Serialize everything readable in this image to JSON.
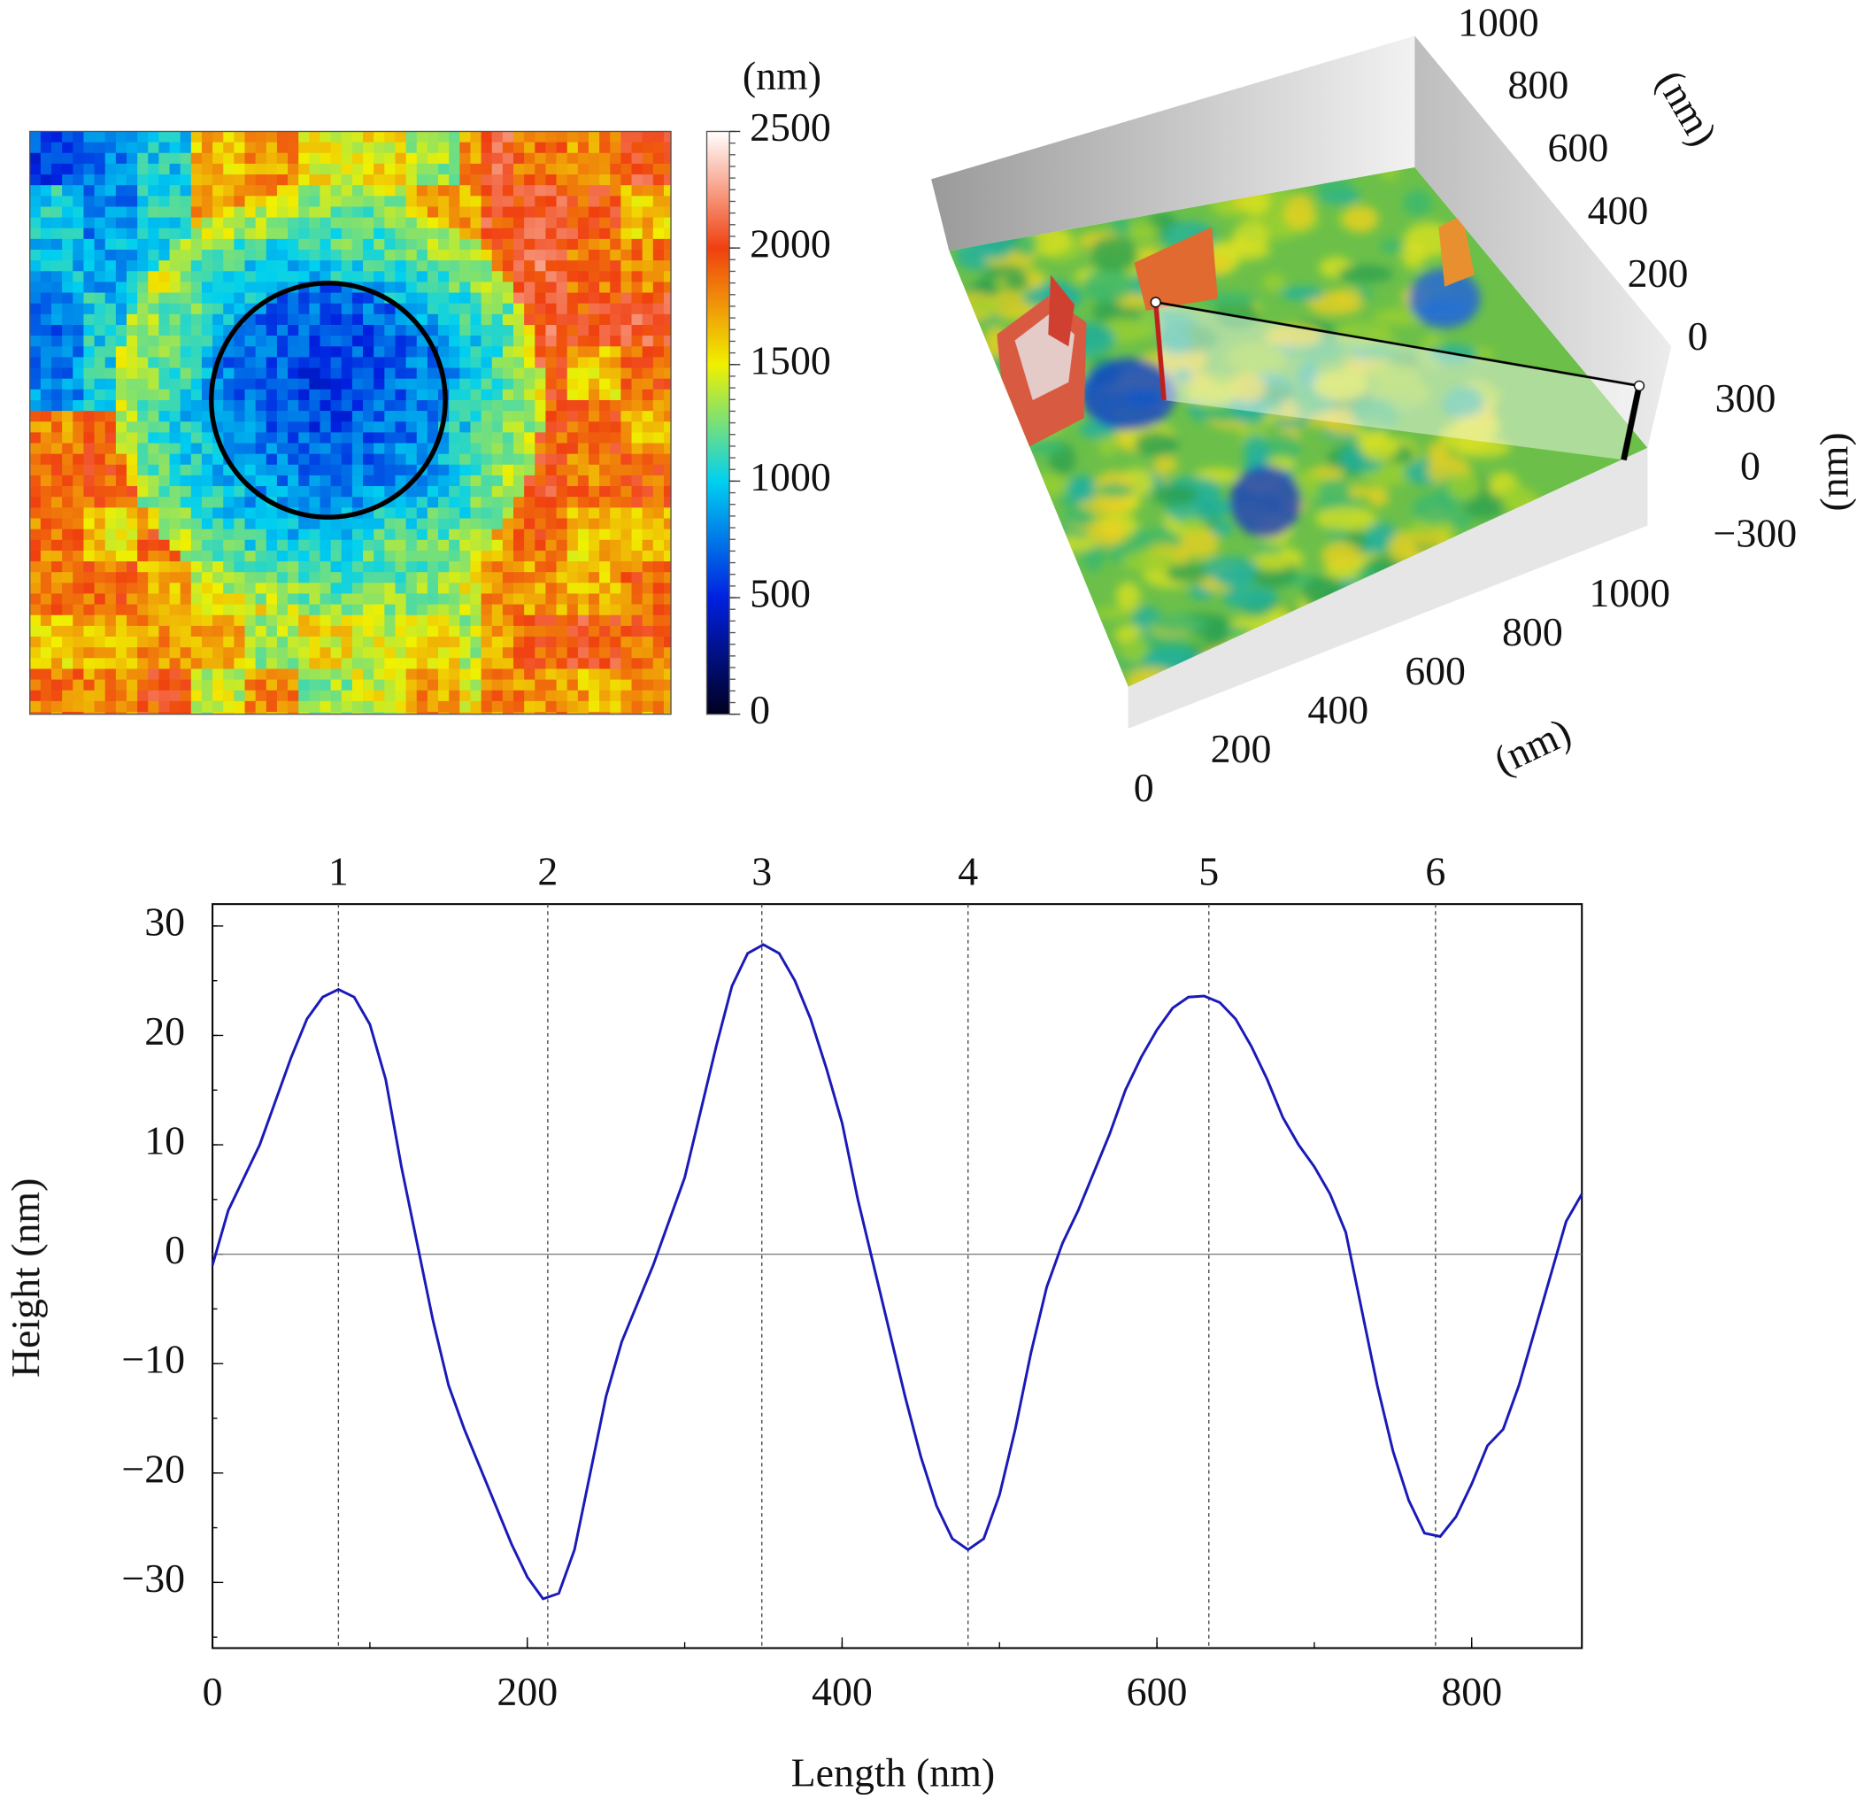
{
  "chart_data": [
    {
      "type": "heatmap",
      "colorbar_label": "(nm)",
      "zlim": [
        0,
        2500
      ],
      "zticks": [
        0,
        500,
        1000,
        1500,
        2000,
        2500
      ],
      "colors": [
        "#000020",
        "#0020e0",
        "#00d0f0",
        "#f0f000",
        "#f04010",
        "#ffffff"
      ]
    },
    {
      "type": "surface3d",
      "xlabel": "(nm)",
      "ylabel": "(nm)",
      "zlabel": "(nm)",
      "xlim": [
        0,
        1000
      ],
      "xticks": [
        0,
        200,
        400,
        600,
        800,
        1000
      ],
      "ylim": [
        0,
        1000
      ],
      "yticks": [
        0,
        200,
        400,
        600,
        800,
        1000
      ],
      "zlim": [
        -300,
        300
      ],
      "zticks": [
        {
          "value": -300,
          "label": "−300"
        },
        0,
        300
      ]
    },
    {
      "type": "line",
      "xlabel": "Length (nm)",
      "ylabel": "Height (nm)",
      "xlim": [
        0,
        870
      ],
      "xticks": [
        0,
        200,
        400,
        600,
        800
      ],
      "ylim": [
        -36,
        32
      ],
      "yticks": [
        {
          "value": -30,
          "label": "−30"
        },
        {
          "value": -20,
          "label": "−20"
        },
        {
          "value": -10,
          "label": "−10"
        },
        0,
        10,
        20,
        30
      ],
      "markers": {
        "labels": [
          "1",
          "2",
          "3",
          "4",
          "5",
          "6"
        ],
        "x": [
          80,
          213,
          349,
          480,
          633,
          777
        ]
      },
      "x": [
        0,
        10,
        20,
        30,
        40,
        50,
        60,
        70,
        80,
        90,
        100,
        110,
        120,
        130,
        140,
        150,
        160,
        170,
        180,
        190,
        200,
        210,
        220,
        230,
        240,
        250,
        260,
        270,
        280,
        290,
        300,
        310,
        320,
        330,
        340,
        350,
        360,
        370,
        380,
        390,
        400,
        410,
        420,
        430,
        440,
        450,
        460,
        470,
        480,
        490,
        500,
        510,
        520,
        530,
        540,
        550,
        560,
        570,
        580,
        590,
        600,
        610,
        620,
        630,
        640,
        650,
        660,
        670,
        680,
        690,
        700,
        710,
        720,
        730,
        740,
        750,
        760,
        770,
        780,
        790,
        800,
        810,
        820,
        830,
        840,
        850,
        860,
        870
      ],
      "series": [
        {
          "color": "#1a1ab8",
          "values": [
            -1,
            4,
            7,
            10,
            14,
            18,
            21.5,
            23.5,
            24.2,
            23.5,
            21,
            16,
            8,
            1,
            -6,
            -12,
            -16,
            -19.5,
            -23,
            -26.5,
            -29.5,
            -31.5,
            -31,
            -27,
            -20,
            -13,
            -8,
            -4.5,
            -1,
            3,
            7,
            13,
            19,
            24.5,
            27.5,
            28.3,
            27.5,
            25,
            21.5,
            17,
            12,
            5,
            -1,
            -7,
            -13,
            -18.5,
            -23,
            -26,
            -27,
            -26,
            -22,
            -16,
            -9,
            -3,
            1,
            4,
            7.5,
            11,
            15,
            18,
            20.5,
            22.5,
            23.5,
            23.6,
            23,
            21.5,
            19,
            16,
            12.5,
            10,
            8,
            5.5,
            2,
            -5,
            -12,
            -18,
            -22.5,
            -25.5,
            -25.8,
            -24,
            -21,
            -17.5,
            -16,
            -12,
            -7,
            -2,
            3,
            5.5
          ]
        }
      ]
    }
  ]
}
